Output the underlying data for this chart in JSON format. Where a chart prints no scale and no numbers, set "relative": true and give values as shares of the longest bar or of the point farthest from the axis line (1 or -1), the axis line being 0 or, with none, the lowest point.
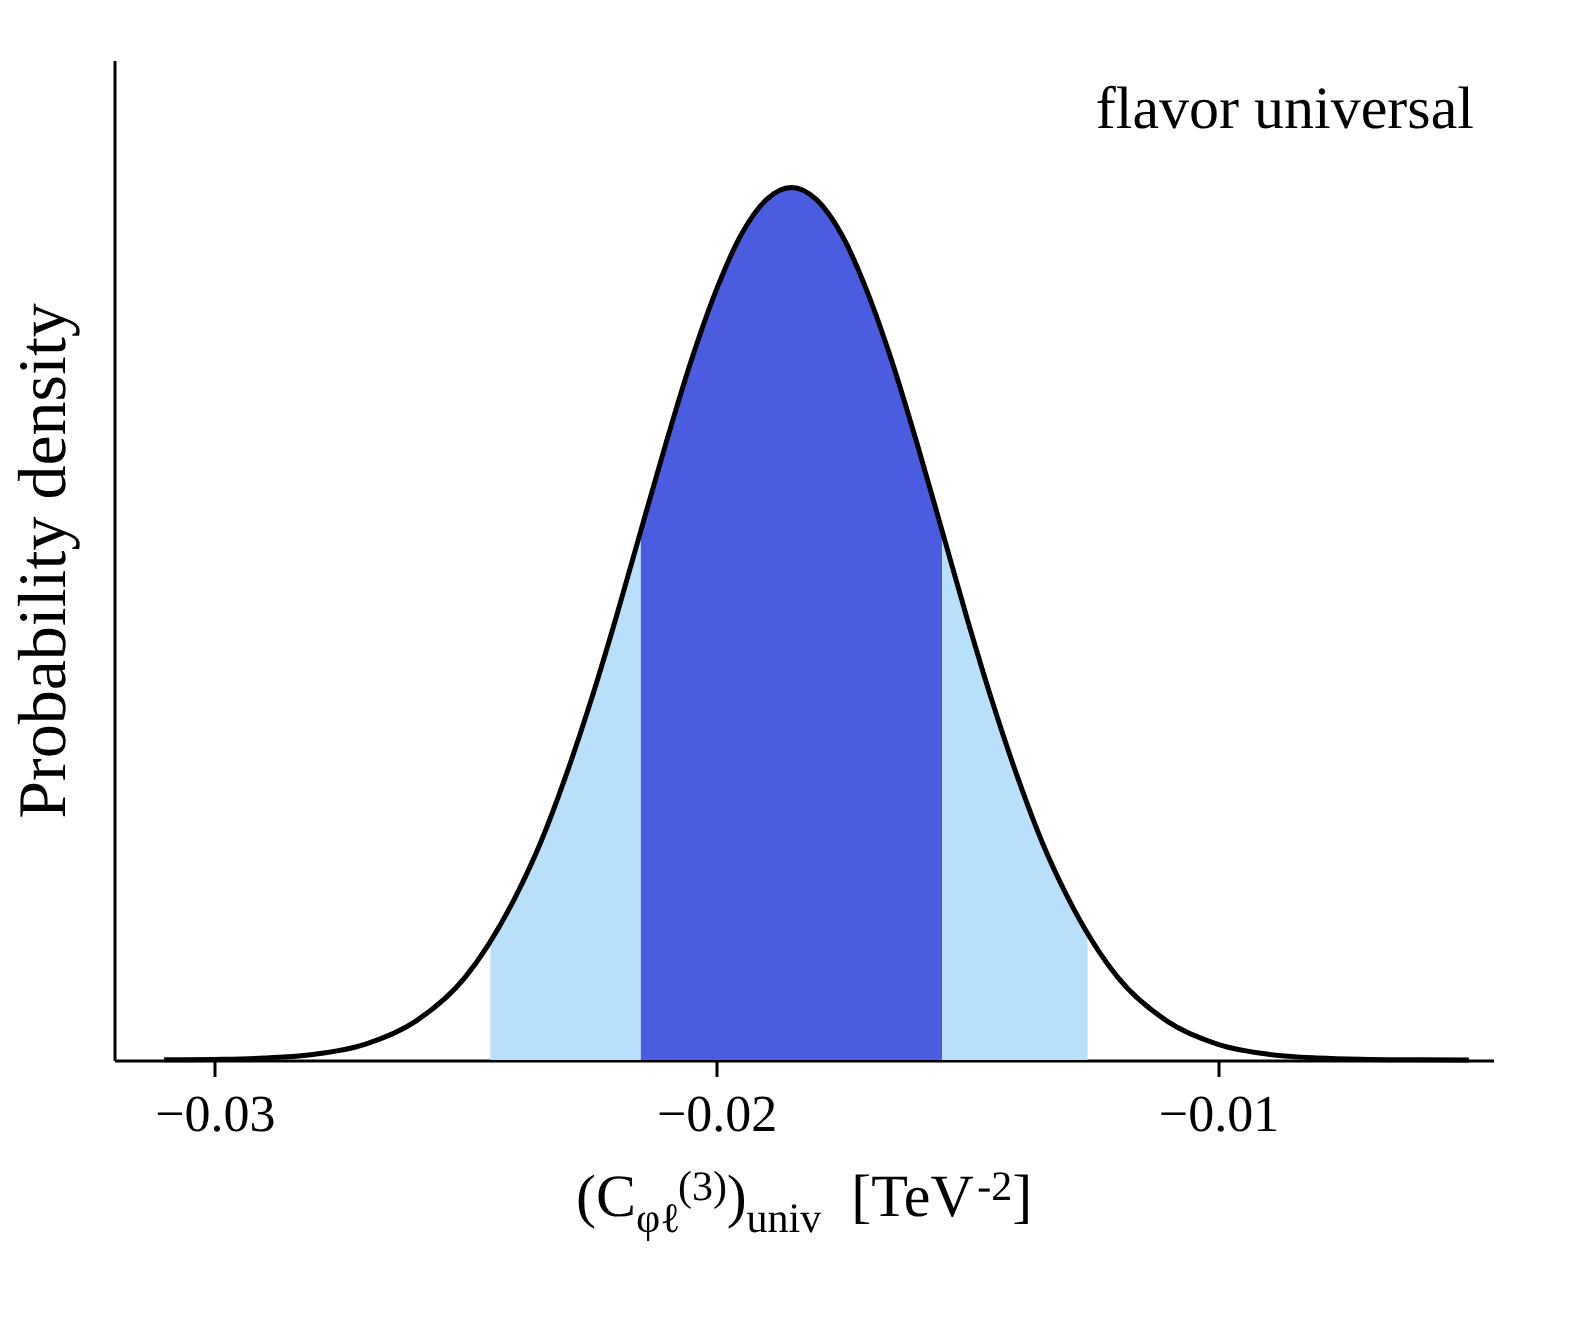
{
  "chart_data": {
    "type": "line",
    "relative": true,
    "xlabel": "(C$_{φℓ}$$^{(3)}$)$_{univ}$  [TeV$^{-2}$]",
    "ylabel": "Probability density",
    "annotations": [
      "flavor universal"
    ],
    "xlim": [
      -0.032,
      -0.0045
    ],
    "xticks": [
      -0.03,
      -0.02,
      -0.01
    ],
    "grid": false,
    "series": [
      {
        "type": "area",
        "color": "#b9e0fa",
        "x": [
          -0.0245,
          -0.024,
          -0.0235,
          -0.023,
          -0.0225,
          -0.022,
          -0.0215
        ],
        "values": [
          0.135,
          0.187,
          0.249,
          0.325,
          0.411,
          0.506,
          0.607
        ]
      },
      {
        "type": "area",
        "color": "#b9e0fa",
        "x": [
          -0.0155,
          -0.015,
          -0.0145,
          -0.014,
          -0.0135,
          -0.013,
          -0.0126
        ],
        "values": [
          0.607,
          0.506,
          0.411,
          0.325,
          0.249,
          0.187,
          0.144
        ]
      },
      {
        "type": "area",
        "color": "#4a5ce0",
        "x": [
          -0.0215,
          -0.021,
          -0.0205,
          -0.02,
          -0.0195,
          -0.019,
          -0.0185,
          -0.018,
          -0.0175,
          -0.017,
          -0.0165,
          -0.016,
          -0.0155
        ],
        "values": [
          0.607,
          0.707,
          0.801,
          0.882,
          0.946,
          0.986,
          1,
          0.986,
          0.946,
          0.882,
          0.801,
          0.707,
          0.607
        ]
      },
      {
        "color": "#000000",
        "x": [
          -0.031,
          -0.03,
          -0.029,
          -0.028,
          -0.027,
          -0.026,
          -0.025,
          -0.024,
          -0.0235,
          -0.023,
          -0.0225,
          -0.022,
          -0.0215,
          -0.021,
          -0.0205,
          -0.02,
          -0.0195,
          -0.019,
          -0.0185,
          -0.018,
          -0.0175,
          -0.017,
          -0.0165,
          -0.016,
          -0.0155,
          -0.015,
          -0.0145,
          -0.014,
          -0.0135,
          -0.013,
          -0.012,
          -0.011,
          -0.01,
          -0.009,
          -0.008,
          -0.007,
          -0.006,
          -0.005
        ],
        "values": [
          0.0002,
          0.0007,
          0.0022,
          0.0066,
          0.018,
          0.044,
          0.095,
          0.187,
          0.249,
          0.325,
          0.411,
          0.506,
          0.607,
          0.707,
          0.801,
          0.882,
          0.946,
          0.986,
          1,
          0.986,
          0.946,
          0.882,
          0.801,
          0.707,
          0.607,
          0.506,
          0.411,
          0.325,
          0.249,
          0.187,
          0.095,
          0.044,
          0.018,
          0.0066,
          0.0022,
          0.0007,
          0.0002,
          0.0001
        ]
      }
    ]
  }
}
